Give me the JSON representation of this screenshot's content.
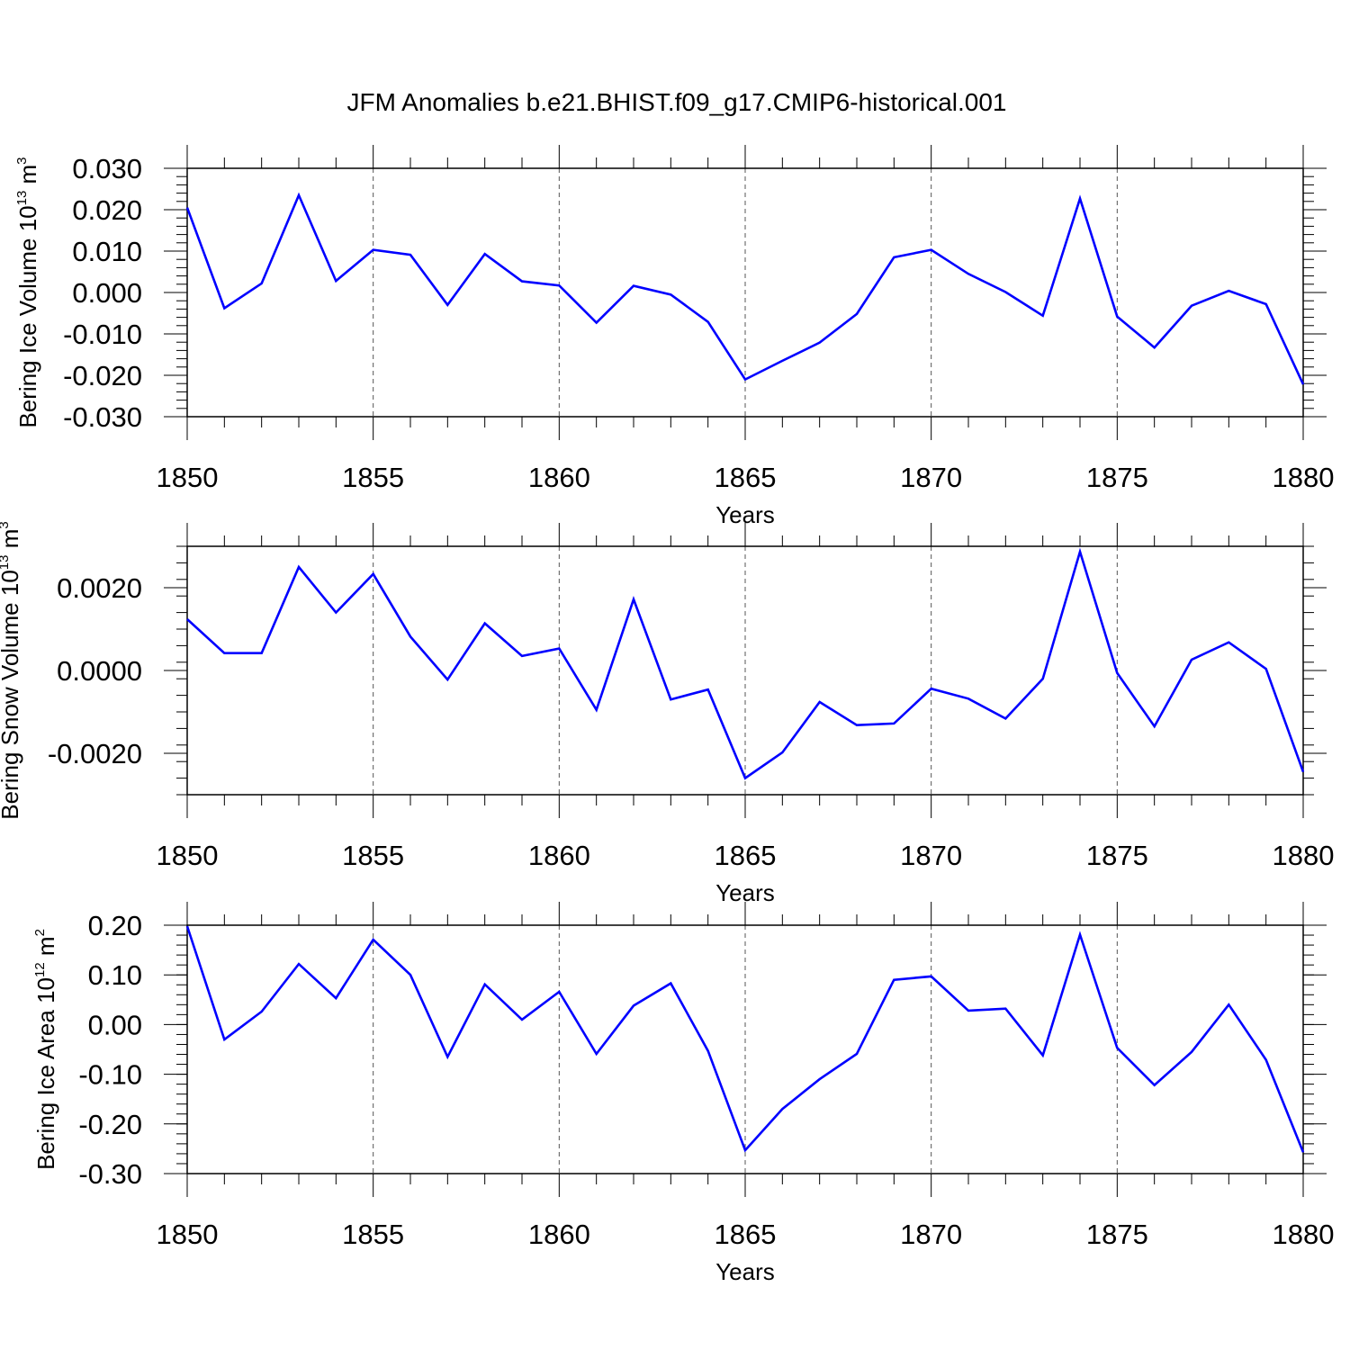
{
  "title": "JFM Anomalies b.e21.BHIST.f09_g17.CMIP6-historical.001",
  "colors": {
    "line": "#0000ff",
    "axis": "#000000",
    "grid": "#555555",
    "background": "#ffffff"
  },
  "chart_data": [
    {
      "type": "line",
      "ylabel": "Bering Ice Volume 10",
      "ylabel_sup": "13",
      "ylabel_unit": " m",
      "ylabel_unit_sup": "3",
      "xlabel": "Years",
      "xlim": [
        1850,
        1880
      ],
      "ylim": [
        -0.03,
        0.03
      ],
      "x_ticks": [
        1850,
        1855,
        1860,
        1865,
        1870,
        1875,
        1880
      ],
      "y_ticks": [
        -0.03,
        -0.02,
        -0.01,
        0.0,
        0.01,
        0.02,
        0.03
      ],
      "y_tick_labels": [
        "-0.030",
        "-0.020",
        "-0.010",
        "0.000",
        "0.010",
        "0.020",
        "0.030"
      ],
      "grid": "vertical dashed at major x ticks",
      "series": [
        {
          "x": [
            1850,
            1851,
            1852,
            1853,
            1854,
            1855,
            1856,
            1857,
            1858,
            1859,
            1860,
            1861,
            1862,
            1863,
            1864,
            1865,
            1866,
            1867,
            1868,
            1869,
            1870,
            1871,
            1872,
            1873,
            1874,
            1875,
            1876,
            1877,
            1878,
            1879,
            1880
          ],
          "values": [
            0.0205,
            -0.0038,
            0.0022,
            0.0235,
            0.0028,
            0.0103,
            0.0091,
            -0.003,
            0.0093,
            0.0027,
            0.0017,
            -0.0073,
            0.0016,
            -0.0005,
            -0.0071,
            -0.021,
            -0.0165,
            -0.0121,
            -0.0052,
            0.0085,
            0.0103,
            0.0045,
            0.0001,
            -0.0056,
            0.0227,
            -0.0058,
            -0.0133,
            -0.0032,
            0.0004,
            -0.0028,
            -0.0222
          ]
        }
      ]
    },
    {
      "type": "line",
      "ylabel": "Bering Snow Volume 10",
      "ylabel_sup": "13",
      "ylabel_unit": " m",
      "ylabel_unit_sup": "3",
      "xlabel": "Years",
      "xlim": [
        1850,
        1880
      ],
      "ylim": [
        -0.003,
        0.003
      ],
      "x_ticks": [
        1850,
        1855,
        1860,
        1865,
        1870,
        1875,
        1880
      ],
      "y_ticks": [
        -0.002,
        0.0,
        0.002
      ],
      "y_tick_labels": [
        "-0.0020",
        "0.0000",
        "0.0020"
      ],
      "grid": "vertical dashed at major x ticks",
      "series": [
        {
          "x": [
            1850,
            1851,
            1852,
            1853,
            1854,
            1855,
            1856,
            1857,
            1858,
            1859,
            1860,
            1861,
            1862,
            1863,
            1864,
            1865,
            1866,
            1867,
            1868,
            1869,
            1870,
            1871,
            1872,
            1873,
            1874,
            1875,
            1876,
            1877,
            1878,
            1879,
            1880
          ],
          "values": [
            0.00124,
            0.00042,
            0.00042,
            0.0025,
            0.0014,
            0.00233,
            0.00082,
            -0.00022,
            0.00114,
            0.00035,
            0.00053,
            -0.00095,
            0.00172,
            -0.0007,
            -0.00046,
            -0.0026,
            -0.00198,
            -0.00076,
            -0.00132,
            -0.00128,
            -0.00044,
            -0.00068,
            -0.00116,
            -0.0002,
            0.00287,
            -6e-05,
            -0.00135,
            0.00026,
            0.00068,
            4e-05,
            -0.00245
          ]
        }
      ]
    },
    {
      "type": "line",
      "ylabel": "Bering Ice Area 10",
      "ylabel_sup": "12",
      "ylabel_unit": " m",
      "ylabel_unit_sup": "2",
      "xlabel": "Years",
      "xlim": [
        1850,
        1880
      ],
      "ylim": [
        -0.3,
        0.2
      ],
      "x_ticks": [
        1850,
        1855,
        1860,
        1865,
        1870,
        1875,
        1880
      ],
      "y_ticks": [
        -0.3,
        -0.2,
        -0.1,
        0.0,
        0.1,
        0.2
      ],
      "y_tick_labels": [
        "-0.30",
        "-0.20",
        "-0.10",
        "0.00",
        "0.10",
        "0.20"
      ],
      "grid": "vertical dashed at major x ticks",
      "series": [
        {
          "x": [
            1850,
            1851,
            1852,
            1853,
            1854,
            1855,
            1856,
            1857,
            1858,
            1859,
            1860,
            1861,
            1862,
            1863,
            1864,
            1865,
            1866,
            1867,
            1868,
            1869,
            1870,
            1871,
            1872,
            1873,
            1874,
            1875,
            1876,
            1877,
            1878,
            1879,
            1880
          ],
          "values": [
            0.198,
            -0.03,
            0.026,
            0.122,
            0.053,
            0.171,
            0.1,
            -0.065,
            0.081,
            0.01,
            0.066,
            -0.059,
            0.038,
            0.083,
            -0.053,
            -0.253,
            -0.17,
            -0.11,
            -0.059,
            0.09,
            0.097,
            0.028,
            0.032,
            -0.062,
            0.181,
            -0.047,
            -0.122,
            -0.055,
            0.04,
            -0.071,
            -0.257
          ]
        }
      ]
    }
  ]
}
